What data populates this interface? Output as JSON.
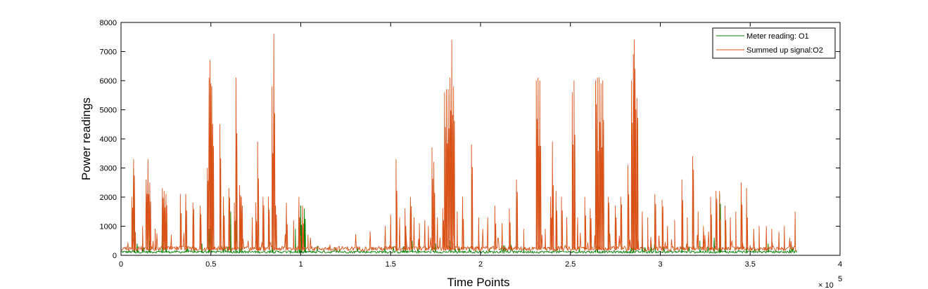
{
  "chart_data": {
    "type": "line",
    "title": "",
    "xlabel": "Time Points",
    "ylabel": "Power readings",
    "x_multiplier_label": "× 10",
    "x_multiplier_exponent": "5",
    "xlim": [
      0,
      4
    ],
    "ylim": [
      0,
      8000
    ],
    "x_ticks": [
      0,
      0.5,
      1,
      1.5,
      2,
      2.5,
      3,
      3.5,
      4
    ],
    "x_tick_labels": [
      "0",
      "0.5",
      "1",
      "1.5",
      "2",
      "2.5",
      "3",
      "3.5",
      "4"
    ],
    "y_ticks": [
      0,
      1000,
      2000,
      3000,
      4000,
      5000,
      6000,
      7000,
      8000
    ],
    "y_tick_labels": [
      "0",
      "1000",
      "2000",
      "3000",
      "4000",
      "5000",
      "6000",
      "7000",
      "8000"
    ],
    "grid": false,
    "legend_position": "top-right",
    "x_end": 3.76,
    "series": [
      {
        "name": "Meter reading: O1",
        "color": "#007f00",
        "baseline": 100,
        "points": [
          [
            0.07,
            3000
          ],
          [
            0.09,
            400
          ],
          [
            0.12,
            300
          ],
          [
            0.16,
            500
          ],
          [
            0.23,
            900
          ],
          [
            0.25,
            600
          ],
          [
            0.45,
            400
          ],
          [
            0.49,
            900
          ],
          [
            0.5,
            1000
          ],
          [
            0.61,
            1500
          ],
          [
            0.64,
            1200
          ],
          [
            0.66,
            900
          ],
          [
            0.84,
            500
          ],
          [
            0.97,
            900
          ],
          [
            0.99,
            1600
          ],
          [
            1.0,
            1700
          ],
          [
            1.02,
            1600
          ],
          [
            1.57,
            300
          ],
          [
            1.62,
            500
          ],
          [
            1.75,
            400
          ],
          [
            1.83,
            500
          ],
          [
            1.88,
            300
          ],
          [
            2.05,
            200
          ],
          [
            2.24,
            300
          ],
          [
            2.42,
            300
          ],
          [
            2.55,
            300
          ],
          [
            2.65,
            600
          ],
          [
            2.85,
            600
          ],
          [
            2.9,
            400
          ],
          [
            2.95,
            400
          ],
          [
            3.12,
            400
          ],
          [
            3.22,
            500
          ],
          [
            3.3,
            600
          ],
          [
            3.33,
            2100
          ],
          [
            3.36,
            500
          ],
          [
            3.48,
            300
          ],
          [
            3.6,
            400
          ],
          [
            3.72,
            200
          ]
        ]
      },
      {
        "name": "Summed up signal:O2",
        "color": "#d95319",
        "baseline": 200,
        "points": [
          [
            0.06,
            2000
          ],
          [
            0.07,
            3300
          ],
          [
            0.08,
            800
          ],
          [
            0.12,
            1000
          ],
          [
            0.14,
            2600
          ],
          [
            0.15,
            3300
          ],
          [
            0.16,
            2500
          ],
          [
            0.19,
            900
          ],
          [
            0.23,
            2300
          ],
          [
            0.24,
            2200
          ],
          [
            0.25,
            2100
          ],
          [
            0.28,
            700
          ],
          [
            0.33,
            2100
          ],
          [
            0.36,
            2100
          ],
          [
            0.4,
            1800
          ],
          [
            0.44,
            1700
          ],
          [
            0.48,
            3000
          ],
          [
            0.49,
            6100
          ],
          [
            0.495,
            6700
          ],
          [
            0.5,
            5900
          ],
          [
            0.505,
            5800
          ],
          [
            0.51,
            4500
          ],
          [
            0.55,
            4500
          ],
          [
            0.57,
            2000
          ],
          [
            0.6,
            2300
          ],
          [
            0.63,
            1800
          ],
          [
            0.64,
            6100
          ],
          [
            0.66,
            2400
          ],
          [
            0.67,
            2000
          ],
          [
            0.73,
            1300
          ],
          [
            0.75,
            1800
          ],
          [
            0.76,
            3900
          ],
          [
            0.79,
            2000
          ],
          [
            0.82,
            2000
          ],
          [
            0.84,
            5800
          ],
          [
            0.85,
            7600
          ],
          [
            0.86,
            1700
          ],
          [
            0.92,
            1800
          ],
          [
            0.96,
            1200
          ],
          [
            0.99,
            2000
          ],
          [
            1.01,
            1700
          ],
          [
            1.04,
            700
          ],
          [
            1.47,
            1000
          ],
          [
            1.5,
            1400
          ],
          [
            1.53,
            3300
          ],
          [
            1.55,
            1300
          ],
          [
            1.58,
            1600
          ],
          [
            1.61,
            2000
          ],
          [
            1.63,
            1300
          ],
          [
            1.66,
            1100
          ],
          [
            1.69,
            1200
          ],
          [
            1.71,
            1000
          ],
          [
            1.73,
            3700
          ],
          [
            1.74,
            3200
          ],
          [
            1.76,
            1300
          ],
          [
            1.79,
            1600
          ],
          [
            1.8,
            5600
          ],
          [
            1.81,
            5700
          ],
          [
            1.82,
            5700
          ],
          [
            1.83,
            6100
          ],
          [
            1.84,
            7400
          ],
          [
            1.85,
            5800
          ],
          [
            1.87,
            1500
          ],
          [
            1.9,
            2000
          ],
          [
            1.95,
            3800
          ],
          [
            1.99,
            1300
          ],
          [
            2.04,
            1300
          ],
          [
            2.08,
            1700
          ],
          [
            2.12,
            1100
          ],
          [
            2.16,
            1600
          ],
          [
            2.2,
            2600
          ],
          [
            2.24,
            900
          ],
          [
            2.31,
            6000
          ],
          [
            2.32,
            6100
          ],
          [
            2.33,
            6000
          ],
          [
            2.36,
            900
          ],
          [
            2.39,
            2000
          ],
          [
            2.4,
            3900
          ],
          [
            2.42,
            2200
          ],
          [
            2.45,
            2000
          ],
          [
            2.48,
            1300
          ],
          [
            2.51,
            5600
          ],
          [
            2.52,
            6000
          ],
          [
            2.54,
            1300
          ],
          [
            2.58,
            2000
          ],
          [
            2.61,
            1600
          ],
          [
            2.64,
            6000
          ],
          [
            2.65,
            6100
          ],
          [
            2.66,
            6100
          ],
          [
            2.67,
            5900
          ],
          [
            2.68,
            6000
          ],
          [
            2.71,
            2000
          ],
          [
            2.75,
            1700
          ],
          [
            2.78,
            2000
          ],
          [
            2.82,
            3100
          ],
          [
            2.84,
            6000
          ],
          [
            2.85,
            6900
          ],
          [
            2.855,
            7400
          ],
          [
            2.86,
            6400
          ],
          [
            2.87,
            5400
          ],
          [
            2.9,
            1500
          ],
          [
            2.93,
            1300
          ],
          [
            2.97,
            2100
          ],
          [
            3.01,
            1900
          ],
          [
            3.04,
            1000
          ],
          [
            3.08,
            1200
          ],
          [
            3.12,
            2600
          ],
          [
            3.15,
            1300
          ],
          [
            3.18,
            3400
          ],
          [
            3.21,
            1500
          ],
          [
            3.24,
            1000
          ],
          [
            3.28,
            2000
          ],
          [
            3.31,
            2200
          ],
          [
            3.33,
            2200
          ],
          [
            3.36,
            1700
          ],
          [
            3.39,
            1300
          ],
          [
            3.42,
            1500
          ],
          [
            3.45,
            2500
          ],
          [
            3.48,
            2300
          ],
          [
            3.52,
            900
          ],
          [
            3.55,
            1000
          ],
          [
            3.59,
            1000
          ],
          [
            3.62,
            900
          ],
          [
            3.66,
            800
          ],
          [
            3.69,
            1000
          ],
          [
            3.72,
            600
          ],
          [
            3.75,
            1500
          ]
        ]
      }
    ]
  }
}
